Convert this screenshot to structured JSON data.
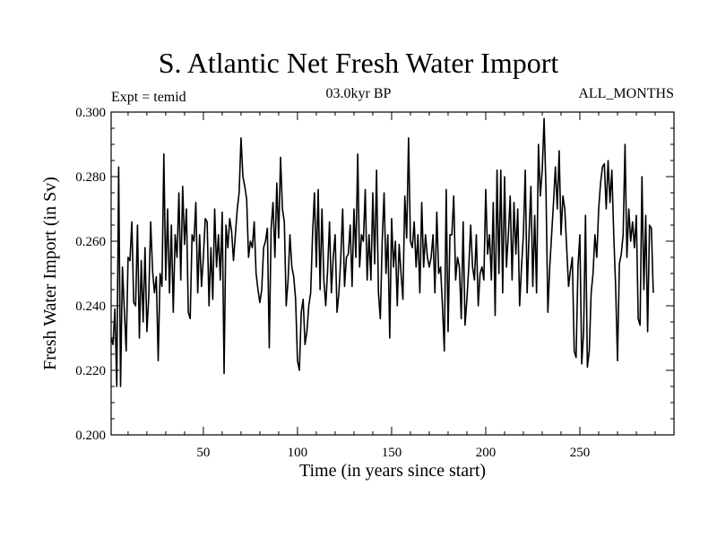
{
  "chart_data": {
    "type": "line",
    "title": "S. Atlantic Net Fresh Water Import",
    "subtitle_left": "Expt = temid",
    "subtitle_center": "03.0kyr BP",
    "subtitle_right": "ALL_MONTHS",
    "xlabel": "Time (in years since start)",
    "ylabel": "Fresh Water Import (in Sv)",
    "xlim": [
      1,
      300
    ],
    "ylim": [
      0.2,
      0.3
    ],
    "xticks": [
      50,
      100,
      150,
      200,
      250
    ],
    "yticks": [
      0.2,
      0.22,
      0.24,
      0.26,
      0.28,
      0.3
    ],
    "ytick_labels": [
      "0.200",
      "0.220",
      "0.240",
      "0.260",
      "0.280",
      "0.300"
    ],
    "series": [
      {
        "name": "Fresh Water Import",
        "x_start": 1,
        "x_step": 1,
        "values": [
          0.23,
          0.228,
          0.239,
          0.215,
          0.283,
          0.215,
          0.252,
          0.239,
          0.226,
          0.255,
          0.254,
          0.266,
          0.241,
          0.24,
          0.265,
          0.23,
          0.254,
          0.235,
          0.258,
          0.232,
          0.243,
          0.266,
          0.251,
          0.244,
          0.249,
          0.223,
          0.25,
          0.246,
          0.287,
          0.248,
          0.27,
          0.244,
          0.265,
          0.238,
          0.262,
          0.255,
          0.275,
          0.248,
          0.277,
          0.259,
          0.27,
          0.238,
          0.236,
          0.262,
          0.26,
          0.272,
          0.244,
          0.262,
          0.246,
          0.255,
          0.267,
          0.266,
          0.24,
          0.258,
          0.242,
          0.27,
          0.252,
          0.262,
          0.248,
          0.269,
          0.219,
          0.265,
          0.258,
          0.267,
          0.263,
          0.254,
          0.262,
          0.27,
          0.275,
          0.292,
          0.28,
          0.277,
          0.273,
          0.255,
          0.26,
          0.258,
          0.266,
          0.25,
          0.245,
          0.241,
          0.245,
          0.258,
          0.26,
          0.264,
          0.227,
          0.264,
          0.272,
          0.255,
          0.278,
          0.261,
          0.286,
          0.27,
          0.266,
          0.24,
          0.248,
          0.262,
          0.252,
          0.249,
          0.242,
          0.223,
          0.22,
          0.238,
          0.242,
          0.228,
          0.232,
          0.24,
          0.244,
          0.262,
          0.275,
          0.252,
          0.276,
          0.245,
          0.27,
          0.248,
          0.24,
          0.251,
          0.266,
          0.244,
          0.255,
          0.262,
          0.238,
          0.244,
          0.255,
          0.27,
          0.246,
          0.255,
          0.256,
          0.265,
          0.246,
          0.27,
          0.255,
          0.287,
          0.252,
          0.262,
          0.26,
          0.276,
          0.248,
          0.262,
          0.248,
          0.275,
          0.253,
          0.282,
          0.244,
          0.236,
          0.26,
          0.275,
          0.25,
          0.262,
          0.23,
          0.267,
          0.252,
          0.26,
          0.24,
          0.259,
          0.25,
          0.242,
          0.274,
          0.261,
          0.292,
          0.26,
          0.258,
          0.266,
          0.252,
          0.262,
          0.244,
          0.272,
          0.252,
          0.262,
          0.255,
          0.252,
          0.255,
          0.262,
          0.244,
          0.269,
          0.25,
          0.252,
          0.24,
          0.226,
          0.276,
          0.232,
          0.262,
          0.262,
          0.274,
          0.248,
          0.255,
          0.252,
          0.236,
          0.266,
          0.234,
          0.242,
          0.252,
          0.265,
          0.252,
          0.248,
          0.262,
          0.24,
          0.25,
          0.252,
          0.248,
          0.276,
          0.256,
          0.262,
          0.248,
          0.272,
          0.237,
          0.282,
          0.25,
          0.282,
          0.244,
          0.28,
          0.252,
          0.262,
          0.274,
          0.248,
          0.272,
          0.256,
          0.27,
          0.24,
          0.252,
          0.262,
          0.282,
          0.244,
          0.262,
          0.277,
          0.246,
          0.268,
          0.244,
          0.29,
          0.274,
          0.282,
          0.298,
          0.276,
          0.238,
          0.252,
          0.262,
          0.272,
          0.283,
          0.27,
          0.288,
          0.262,
          0.274,
          0.27,
          0.258,
          0.246,
          0.251,
          0.255,
          0.226,
          0.224,
          0.252,
          0.262,
          0.222,
          0.232,
          0.268,
          0.221,
          0.226,
          0.244,
          0.25,
          0.262,
          0.255,
          0.27,
          0.278,
          0.283,
          0.284,
          0.27,
          0.285,
          0.272,
          0.282,
          0.262,
          0.246,
          0.223,
          0.253,
          0.256,
          0.262,
          0.29,
          0.255,
          0.27,
          0.26,
          0.266,
          0.258,
          0.268,
          0.236,
          0.234,
          0.28,
          0.245,
          0.268,
          0.232,
          0.265,
          0.264,
          0.244
        ]
      }
    ]
  }
}
